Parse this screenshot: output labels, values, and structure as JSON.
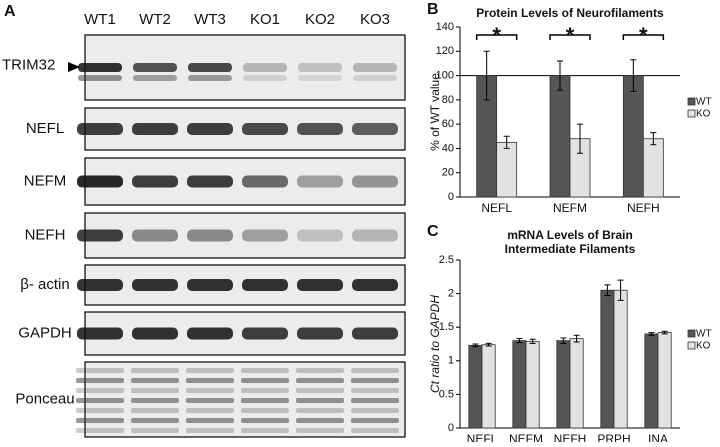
{
  "panel_a": {
    "label": "A",
    "lanes": [
      "WT1",
      "WT2",
      "WT3",
      "KO1",
      "KO2",
      "KO3"
    ],
    "rows": [
      "TRIM32",
      "NEFL",
      "NEFM",
      "NEFH",
      "β- actin",
      "GAPDH",
      "Ponceau"
    ]
  },
  "chart_data": [
    {
      "type": "bar",
      "panel_label": "B",
      "title": "Protein Levels of Neurofilaments",
      "ylabel": "% of WT value",
      "categories": [
        "NEFL",
        "NEFM",
        "NEFH"
      ],
      "series": [
        {
          "name": "WT",
          "color": "#555555",
          "values": [
            100,
            100,
            100
          ],
          "errors": [
            20,
            12,
            13
          ]
        },
        {
          "name": "KO",
          "color": "#e2e2e2",
          "values": [
            45,
            48,
            48
          ],
          "errors": [
            5,
            12,
            5
          ]
        }
      ],
      "significance": [
        "*",
        "*",
        "*"
      ],
      "hline": 100,
      "ylim": [
        0,
        140
      ],
      "yticks": [
        0,
        20,
        40,
        60,
        80,
        100,
        120,
        140
      ],
      "legend": "right"
    },
    {
      "type": "bar",
      "panel_label": "C",
      "title": [
        "mRNA Levels of Brain",
        "Intermediate Filaments"
      ],
      "ylabel": "Ct ratio to GAPDH",
      "categories": [
        "NEFL",
        "NEFM",
        "NEFH",
        "PRPH",
        "INA"
      ],
      "series": [
        {
          "name": "WT",
          "color": "#555555",
          "values": [
            1.23,
            1.3,
            1.3,
            2.05,
            1.4
          ],
          "errors": [
            0.02,
            0.03,
            0.04,
            0.08,
            0.02
          ]
        },
        {
          "name": "KO",
          "color": "#e2e2e2",
          "values": [
            1.24,
            1.29,
            1.33,
            2.05,
            1.42
          ],
          "errors": [
            0.02,
            0.03,
            0.05,
            0.15,
            0.02
          ]
        }
      ],
      "ylim": [
        0,
        2.5
      ],
      "yticks": [
        0,
        0.5,
        1,
        1.5,
        2,
        2.5
      ],
      "legend": "right"
    }
  ]
}
